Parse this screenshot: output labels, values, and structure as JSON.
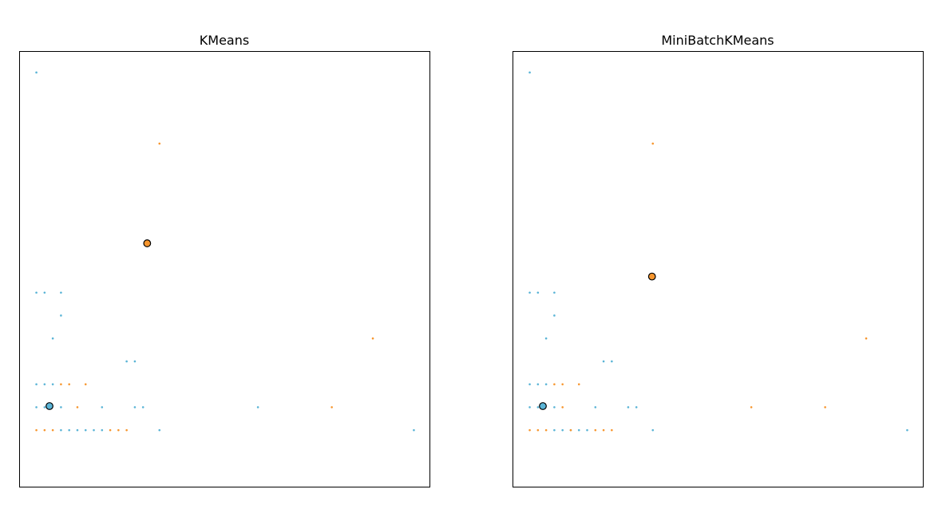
{
  "chart_data": [
    {
      "type": "scatter",
      "title": "KMeans",
      "xlabel": "",
      "ylabel": "",
      "grid": false,
      "xlim": [
        -2,
        48
      ],
      "ylim": [
        -2.5,
        16.5
      ],
      "colors": {
        "cluster_a": "#5ab4d6",
        "cluster_b": "#f7962e"
      },
      "series": [
        {
          "color": "#5ab4d6",
          "points": [
            [
              0,
              15.6
            ],
            [
              0,
              6
            ],
            [
              1,
              6
            ],
            [
              3,
              6
            ],
            [
              3,
              5
            ],
            [
              2,
              4
            ],
            [
              11,
              3
            ],
            [
              12,
              3
            ],
            [
              0,
              2
            ],
            [
              1,
              2
            ],
            [
              2,
              2
            ],
            [
              0,
              1
            ],
            [
              1,
              1
            ],
            [
              3,
              1
            ],
            [
              8,
              1
            ],
            [
              12,
              1
            ],
            [
              13,
              1
            ],
            [
              27,
              1
            ],
            [
              3,
              0
            ],
            [
              4,
              0
            ],
            [
              5,
              0
            ],
            [
              6,
              0
            ],
            [
              7,
              0
            ],
            [
              8,
              0
            ],
            [
              15,
              0
            ],
            [
              46,
              0
            ]
          ]
        },
        {
          "color": "#f7962e",
          "points": [
            [
              15,
              12.5
            ],
            [
              41,
              4
            ],
            [
              3,
              2
            ],
            [
              4,
              2
            ],
            [
              6,
              2
            ],
            [
              5,
              1
            ],
            [
              36,
              1
            ],
            [
              0,
              0
            ],
            [
              1,
              0
            ],
            [
              2,
              0
            ],
            [
              9,
              0
            ],
            [
              10,
              0
            ],
            [
              11,
              0
            ]
          ]
        }
      ],
      "centers": [
        {
          "color": "#5ab4d6",
          "x": 1.6,
          "y": 1.05
        },
        {
          "color": "#f7962e",
          "x": 13.5,
          "y": 8.15
        }
      ]
    },
    {
      "type": "scatter",
      "title": "MiniBatchKMeans",
      "xlabel": "",
      "ylabel": "",
      "grid": false,
      "xlim": [
        -2,
        48
      ],
      "ylim": [
        -2.5,
        16.5
      ],
      "colors": {
        "cluster_a": "#5ab4d6",
        "cluster_b": "#f7962e"
      },
      "series": [
        {
          "color": "#5ab4d6",
          "points": [
            [
              0,
              15.6
            ],
            [
              0,
              6
            ],
            [
              1,
              6
            ],
            [
              3,
              6
            ],
            [
              3,
              5
            ],
            [
              2,
              4
            ],
            [
              9,
              3
            ],
            [
              10,
              3
            ],
            [
              0,
              2
            ],
            [
              1,
              2
            ],
            [
              2,
              2
            ],
            [
              0,
              1
            ],
            [
              1,
              1
            ],
            [
              3,
              1
            ],
            [
              8,
              1
            ],
            [
              12,
              1
            ],
            [
              13,
              1
            ],
            [
              3,
              0
            ],
            [
              4,
              0
            ],
            [
              5,
              0
            ],
            [
              6,
              0
            ],
            [
              7,
              0
            ],
            [
              15,
              0
            ],
            [
              46,
              0
            ]
          ]
        },
        {
          "color": "#f7962e",
          "points": [
            [
              15,
              12.5
            ],
            [
              41,
              4
            ],
            [
              3,
              2
            ],
            [
              4,
              2
            ],
            [
              6,
              2
            ],
            [
              4,
              1
            ],
            [
              27,
              1
            ],
            [
              36,
              1
            ],
            [
              0,
              0
            ],
            [
              1,
              0
            ],
            [
              2,
              0
            ],
            [
              5,
              0
            ],
            [
              8,
              0
            ],
            [
              9,
              0
            ],
            [
              10,
              0
            ]
          ]
        }
      ],
      "centers": [
        {
          "color": "#5ab4d6",
          "x": 1.6,
          "y": 1.05
        },
        {
          "color": "#f7962e",
          "x": 14.9,
          "y": 6.7
        }
      ]
    }
  ]
}
